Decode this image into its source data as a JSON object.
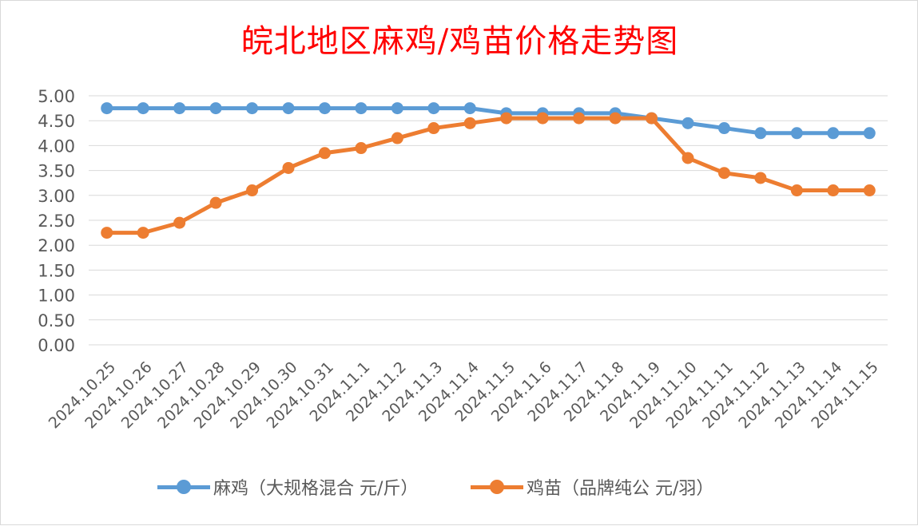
{
  "chart_data": {
    "type": "line",
    "title": "皖北地区麻鸡/鸡苗价格走势图",
    "categories": [
      "2024.10.25",
      "2024.10.26",
      "2024.10.27",
      "2024.10.28",
      "2024.10.29",
      "2024.10.30",
      "2024.10.31",
      "2024.11.1",
      "2024.11.2",
      "2024.11.3",
      "2024.11.4",
      "2024.11.5",
      "2024.11.6",
      "2024.11.7",
      "2024.11.8",
      "2024.11.9",
      "2024.11.10",
      "2024.11.11",
      "2024.11.12",
      "2024.11.13",
      "2024.11.14",
      "2024.11.15"
    ],
    "series": [
      {
        "name": "麻鸡（大规格混合 元/斤）",
        "color": "#5b9bd5",
        "values": [
          4.75,
          4.75,
          4.75,
          4.75,
          4.75,
          4.75,
          4.75,
          4.75,
          4.75,
          4.75,
          4.75,
          4.65,
          4.65,
          4.65,
          4.65,
          4.55,
          4.45,
          4.35,
          4.25,
          4.25,
          4.25,
          4.25
        ]
      },
      {
        "name": "鸡苗（品牌纯公 元/羽）",
        "color": "#ed7d31",
        "values": [
          2.25,
          2.25,
          2.45,
          2.85,
          3.1,
          3.55,
          3.85,
          3.95,
          4.15,
          4.35,
          4.45,
          4.55,
          4.55,
          4.55,
          4.55,
          4.55,
          3.75,
          3.45,
          3.35,
          3.1,
          3.1,
          3.1
        ]
      }
    ],
    "yticks": [
      "5.00",
      "4.50",
      "4.00",
      "3.50",
      "3.00",
      "2.50",
      "2.00",
      "1.50",
      "1.00",
      "0.50",
      "0.00"
    ],
    "ylim": [
      0,
      5
    ],
    "grid": true,
    "legend_position": "bottom",
    "title_color": "#ff0000"
  }
}
